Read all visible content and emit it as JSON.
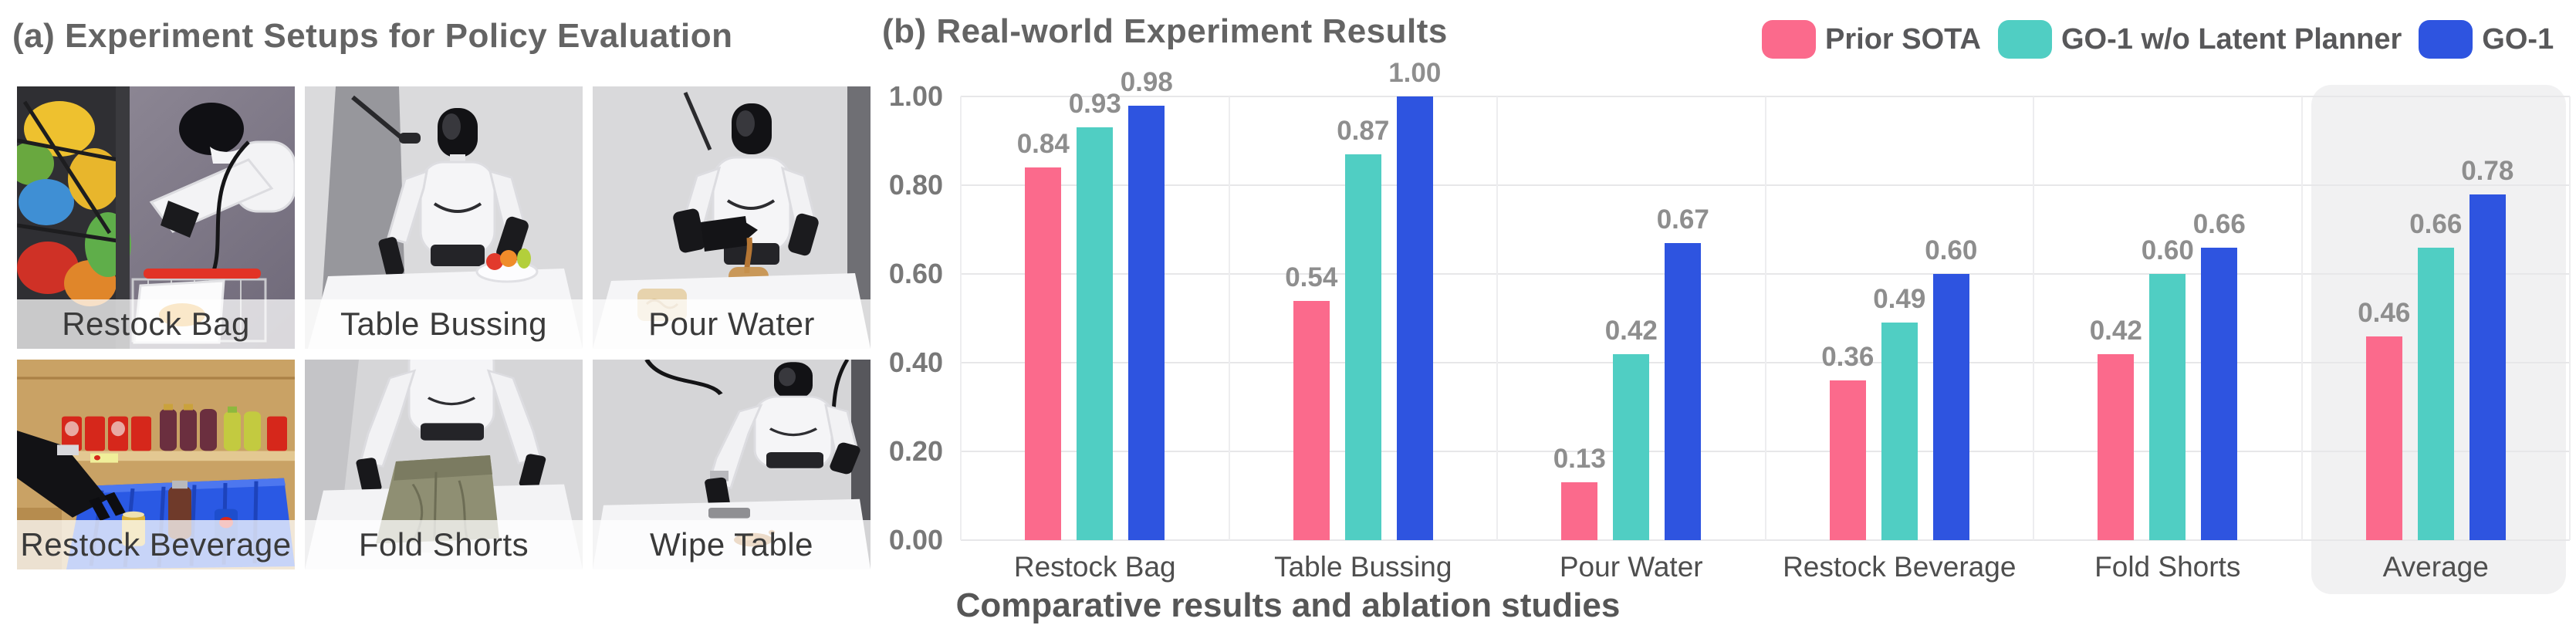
{
  "panel_a": {
    "title": "(a) Experiment Setups for Policy Evaluation",
    "photos": [
      {
        "label": "Restock Bag"
      },
      {
        "label": "Table Bussing"
      },
      {
        "label": "Pour Water"
      },
      {
        "label": "Restock Beverage"
      },
      {
        "label": "Fold Shorts"
      },
      {
        "label": "Wipe Table"
      }
    ]
  },
  "panel_b": {
    "title": "(b) Real-world Experiment Results",
    "caption": "Comparative results and ablation studies"
  },
  "chart_data": {
    "type": "bar",
    "title": "(b) Real-world Experiment Results",
    "categories": [
      "Restock Bag",
      "Table Bussing",
      "Pour Water",
      "Restock Beverage",
      "Fold Shorts",
      "Average"
    ],
    "series": [
      {
        "name": "Prior SOTA",
        "color": "#FB6A8C",
        "values": [
          0.84,
          0.54,
          0.13,
          0.36,
          0.42,
          0.46
        ]
      },
      {
        "name": "GO-1 w/o Latent Planner",
        "color": "#50CEC3",
        "values": [
          0.93,
          0.87,
          0.42,
          0.49,
          0.6,
          0.66
        ]
      },
      {
        "name": "GO-1",
        "color": "#2E54E0",
        "values": [
          0.98,
          1.0,
          0.67,
          0.6,
          0.66,
          0.78
        ]
      }
    ],
    "ylim": [
      0,
      1.0
    ],
    "yticks": [
      0.0,
      0.2,
      0.4,
      0.6,
      0.8,
      1.0
    ],
    "grid": true,
    "legend_position": "top-right",
    "highlight_category": "Average",
    "value_labels": true,
    "xlabel": "",
    "ylabel": ""
  }
}
